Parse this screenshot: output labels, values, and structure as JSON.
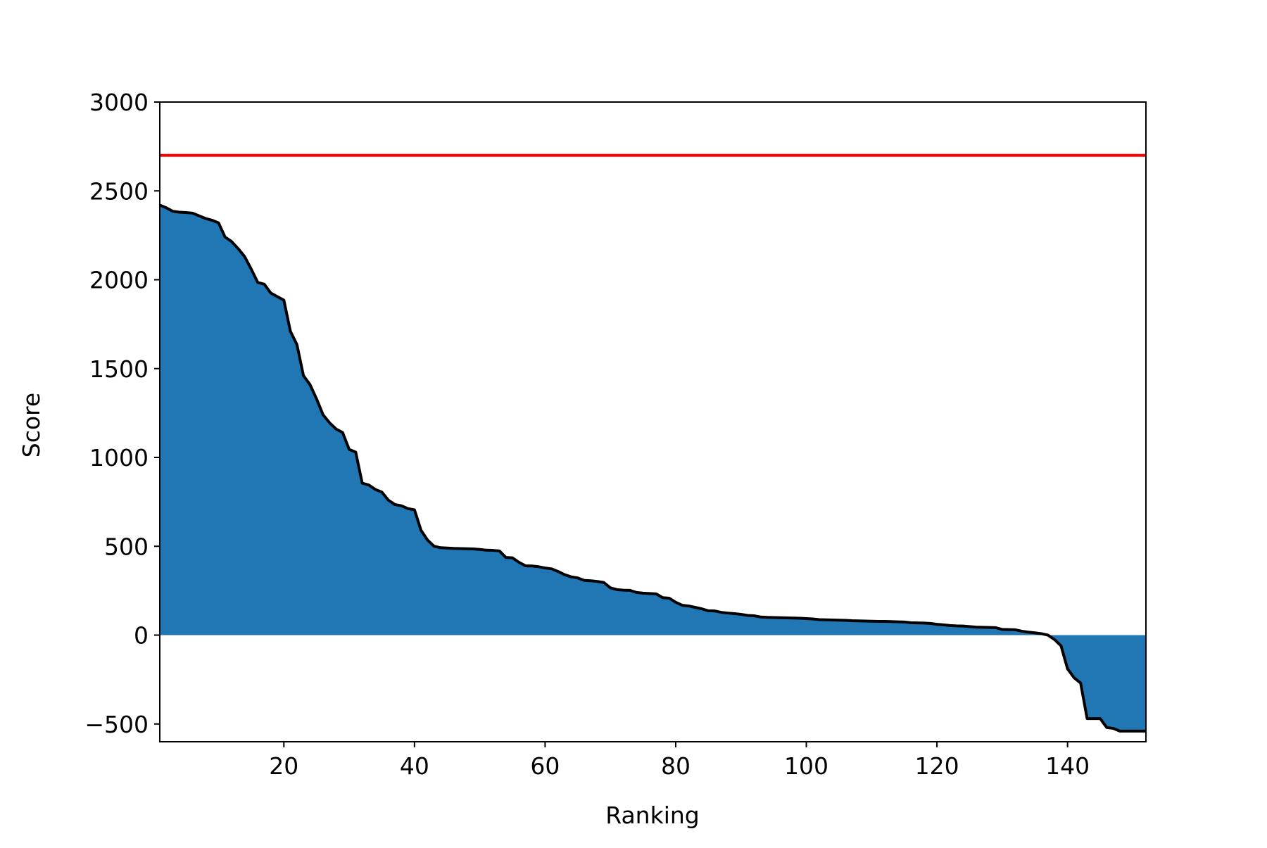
{
  "chart_data": {
    "type": "area",
    "title": "",
    "xlabel": "Ranking",
    "ylabel": "Score",
    "xlim": [
      1,
      152
    ],
    "ylim": [
      -600,
      3000
    ],
    "x_ticks": [
      20,
      40,
      60,
      80,
      100,
      120,
      140
    ],
    "y_ticks": [
      -500,
      0,
      500,
      1000,
      1500,
      2000,
      2500,
      3000
    ],
    "x_tick_labels": [
      "20",
      "40",
      "60",
      "80",
      "100",
      "120",
      "140"
    ],
    "y_tick_labels": [
      "−500",
      "0",
      "500",
      "1000",
      "1500",
      "2000",
      "2500",
      "3000"
    ],
    "grid": false,
    "legend": "none",
    "fill_color": "#2077b4",
    "line_color": "#000000",
    "reference_line": {
      "y": 2700,
      "color": "#ff0000"
    },
    "series": [
      {
        "x": [
          1,
          2,
          3,
          4,
          5,
          6,
          7,
          8,
          9,
          10,
          11,
          12,
          13,
          14,
          15,
          16,
          17,
          18,
          19,
          20,
          21,
          22,
          23,
          24,
          25,
          26,
          27,
          28,
          29,
          30,
          31,
          32,
          33,
          34,
          35,
          36,
          37,
          38,
          39,
          40,
          41,
          42,
          43,
          44,
          45,
          46,
          47,
          48,
          49,
          50,
          51,
          52,
          53,
          54,
          55,
          56,
          57,
          58,
          59,
          60,
          61,
          62,
          63,
          64,
          65,
          66,
          67,
          68,
          69,
          70,
          71,
          72,
          73,
          74,
          75,
          76,
          77,
          78,
          79,
          80,
          81,
          82,
          83,
          84,
          85,
          86,
          87,
          88,
          89,
          90,
          91,
          92,
          93,
          94,
          95,
          96,
          97,
          98,
          99,
          100,
          101,
          102,
          103,
          104,
          105,
          106,
          107,
          108,
          109,
          110,
          111,
          112,
          113,
          114,
          115,
          116,
          117,
          118,
          119,
          120,
          121,
          122,
          123,
          124,
          125,
          126,
          127,
          128,
          129,
          130,
          131,
          132,
          133,
          134,
          135,
          136,
          137,
          138,
          139,
          140,
          141,
          142,
          143,
          144,
          145,
          146,
          147,
          148,
          149,
          150,
          151,
          152
        ],
        "y": [
          2420,
          2405,
          2385,
          2380,
          2378,
          2375,
          2360,
          2345,
          2335,
          2320,
          2240,
          2215,
          2175,
          2130,
          2060,
          1985,
          1975,
          1925,
          1905,
          1885,
          1710,
          1635,
          1460,
          1410,
          1330,
          1240,
          1195,
          1160,
          1140,
          1045,
          1030,
          855,
          845,
          820,
          805,
          760,
          735,
          728,
          712,
          705,
          590,
          535,
          500,
          492,
          490,
          488,
          487,
          486,
          485,
          482,
          478,
          477,
          474,
          437,
          435,
          410,
          390,
          389,
          385,
          378,
          373,
          358,
          340,
          328,
          322,
          308,
          306,
          302,
          296,
          266,
          256,
          253,
          252,
          240,
          236,
          234,
          232,
          211,
          208,
          185,
          168,
          164,
          156,
          148,
          137,
          136,
          128,
          124,
          121,
          117,
          111,
          109,
          102,
          100,
          99,
          98,
          97,
          96,
          95,
          93,
          91,
          87,
          86,
          85,
          84,
          83,
          81,
          80,
          79,
          78,
          77,
          77,
          76,
          75,
          74,
          70,
          69,
          68,
          66,
          61,
          58,
          54,
          52,
          51,
          48,
          45,
          44,
          43,
          42,
          32,
          31,
          30,
          22,
          17,
          13,
          8,
          0,
          -25,
          -60,
          -190,
          -240,
          -270,
          -470,
          -470,
          -470,
          -520,
          -525,
          -540,
          -540,
          -540,
          -540,
          -540
        ]
      }
    ]
  }
}
